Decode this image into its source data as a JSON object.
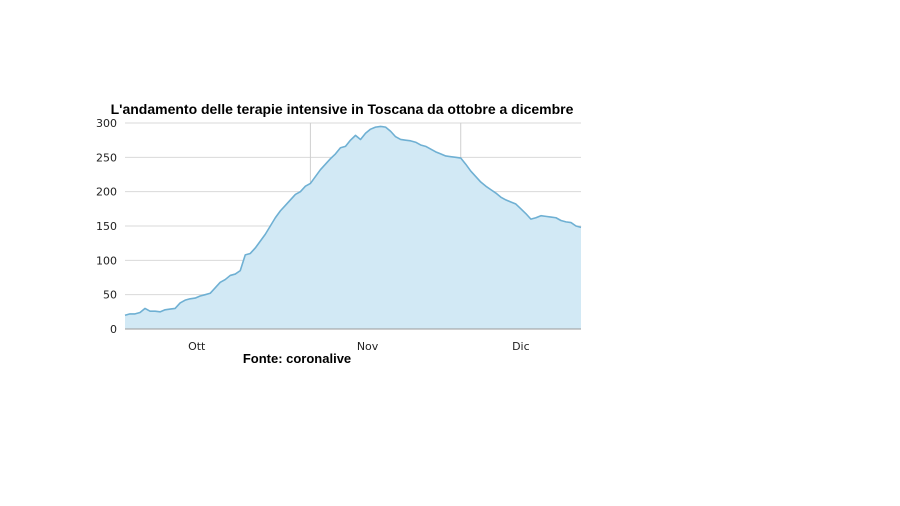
{
  "chart_data": {
    "type": "area",
    "title": "L'andamento delle terapie intensive in Toscana da ottobre a dicembre",
    "source": "Fonte: coronalive",
    "xlabel": "",
    "ylabel": "",
    "ylim": [
      0,
      300
    ],
    "yticks": [
      0,
      50,
      100,
      150,
      200,
      250,
      300
    ],
    "xticks": [
      "Ott",
      "Nov",
      "Dic"
    ],
    "grid": true,
    "legend": "none",
    "colors": {
      "line": "#6fb0d3",
      "fill": "#d2e9f5"
    },
    "x": [
      "09-25",
      "09-26",
      "09-27",
      "09-28",
      "09-29",
      "09-30",
      "10-01",
      "10-02",
      "10-03",
      "10-04",
      "10-05",
      "10-06",
      "10-07",
      "10-08",
      "10-09",
      "10-10",
      "10-11",
      "10-12",
      "10-13",
      "10-14",
      "10-15",
      "10-16",
      "10-17",
      "10-18",
      "10-19",
      "10-20",
      "10-21",
      "10-22",
      "10-23",
      "10-24",
      "10-25",
      "10-26",
      "10-27",
      "10-28",
      "10-29",
      "10-30",
      "10-31",
      "11-01",
      "11-02",
      "11-03",
      "11-04",
      "11-05",
      "11-06",
      "11-07",
      "11-08",
      "11-09",
      "11-10",
      "11-11",
      "11-12",
      "11-13",
      "11-14",
      "11-15",
      "11-16",
      "11-17",
      "11-18",
      "11-19",
      "11-20",
      "11-21",
      "11-22",
      "11-23",
      "11-24",
      "11-25",
      "11-26",
      "11-27",
      "11-28",
      "11-29",
      "11-30",
      "12-01",
      "12-02",
      "12-03",
      "12-04",
      "12-05",
      "12-06",
      "12-07",
      "12-08",
      "12-09",
      "12-10",
      "12-11",
      "12-12",
      "12-13",
      "12-14",
      "12-15",
      "12-16",
      "12-17",
      "12-18",
      "12-19",
      "12-20",
      "12-21",
      "12-22",
      "12-23",
      "12-24",
      "12-25"
    ],
    "values": [
      20,
      22,
      22,
      24,
      30,
      26,
      26,
      25,
      28,
      29,
      30,
      38,
      42,
      44,
      45,
      48,
      50,
      52,
      60,
      68,
      72,
      78,
      80,
      85,
      108,
      110,
      118,
      128,
      138,
      150,
      162,
      172,
      180,
      188,
      196,
      200,
      208,
      212,
      222,
      232,
      240,
      248,
      255,
      264,
      266,
      275,
      282,
      276,
      285,
      291,
      294,
      295,
      294,
      288,
      280,
      276,
      275,
      274,
      272,
      268,
      266,
      262,
      258,
      255,
      252,
      251,
      250,
      249,
      240,
      230,
      222,
      214,
      208,
      203,
      198,
      192,
      188,
      185,
      182,
      175,
      168,
      160,
      162,
      165,
      164,
      163,
      162,
      158,
      156,
      155,
      150,
      148
    ]
  }
}
